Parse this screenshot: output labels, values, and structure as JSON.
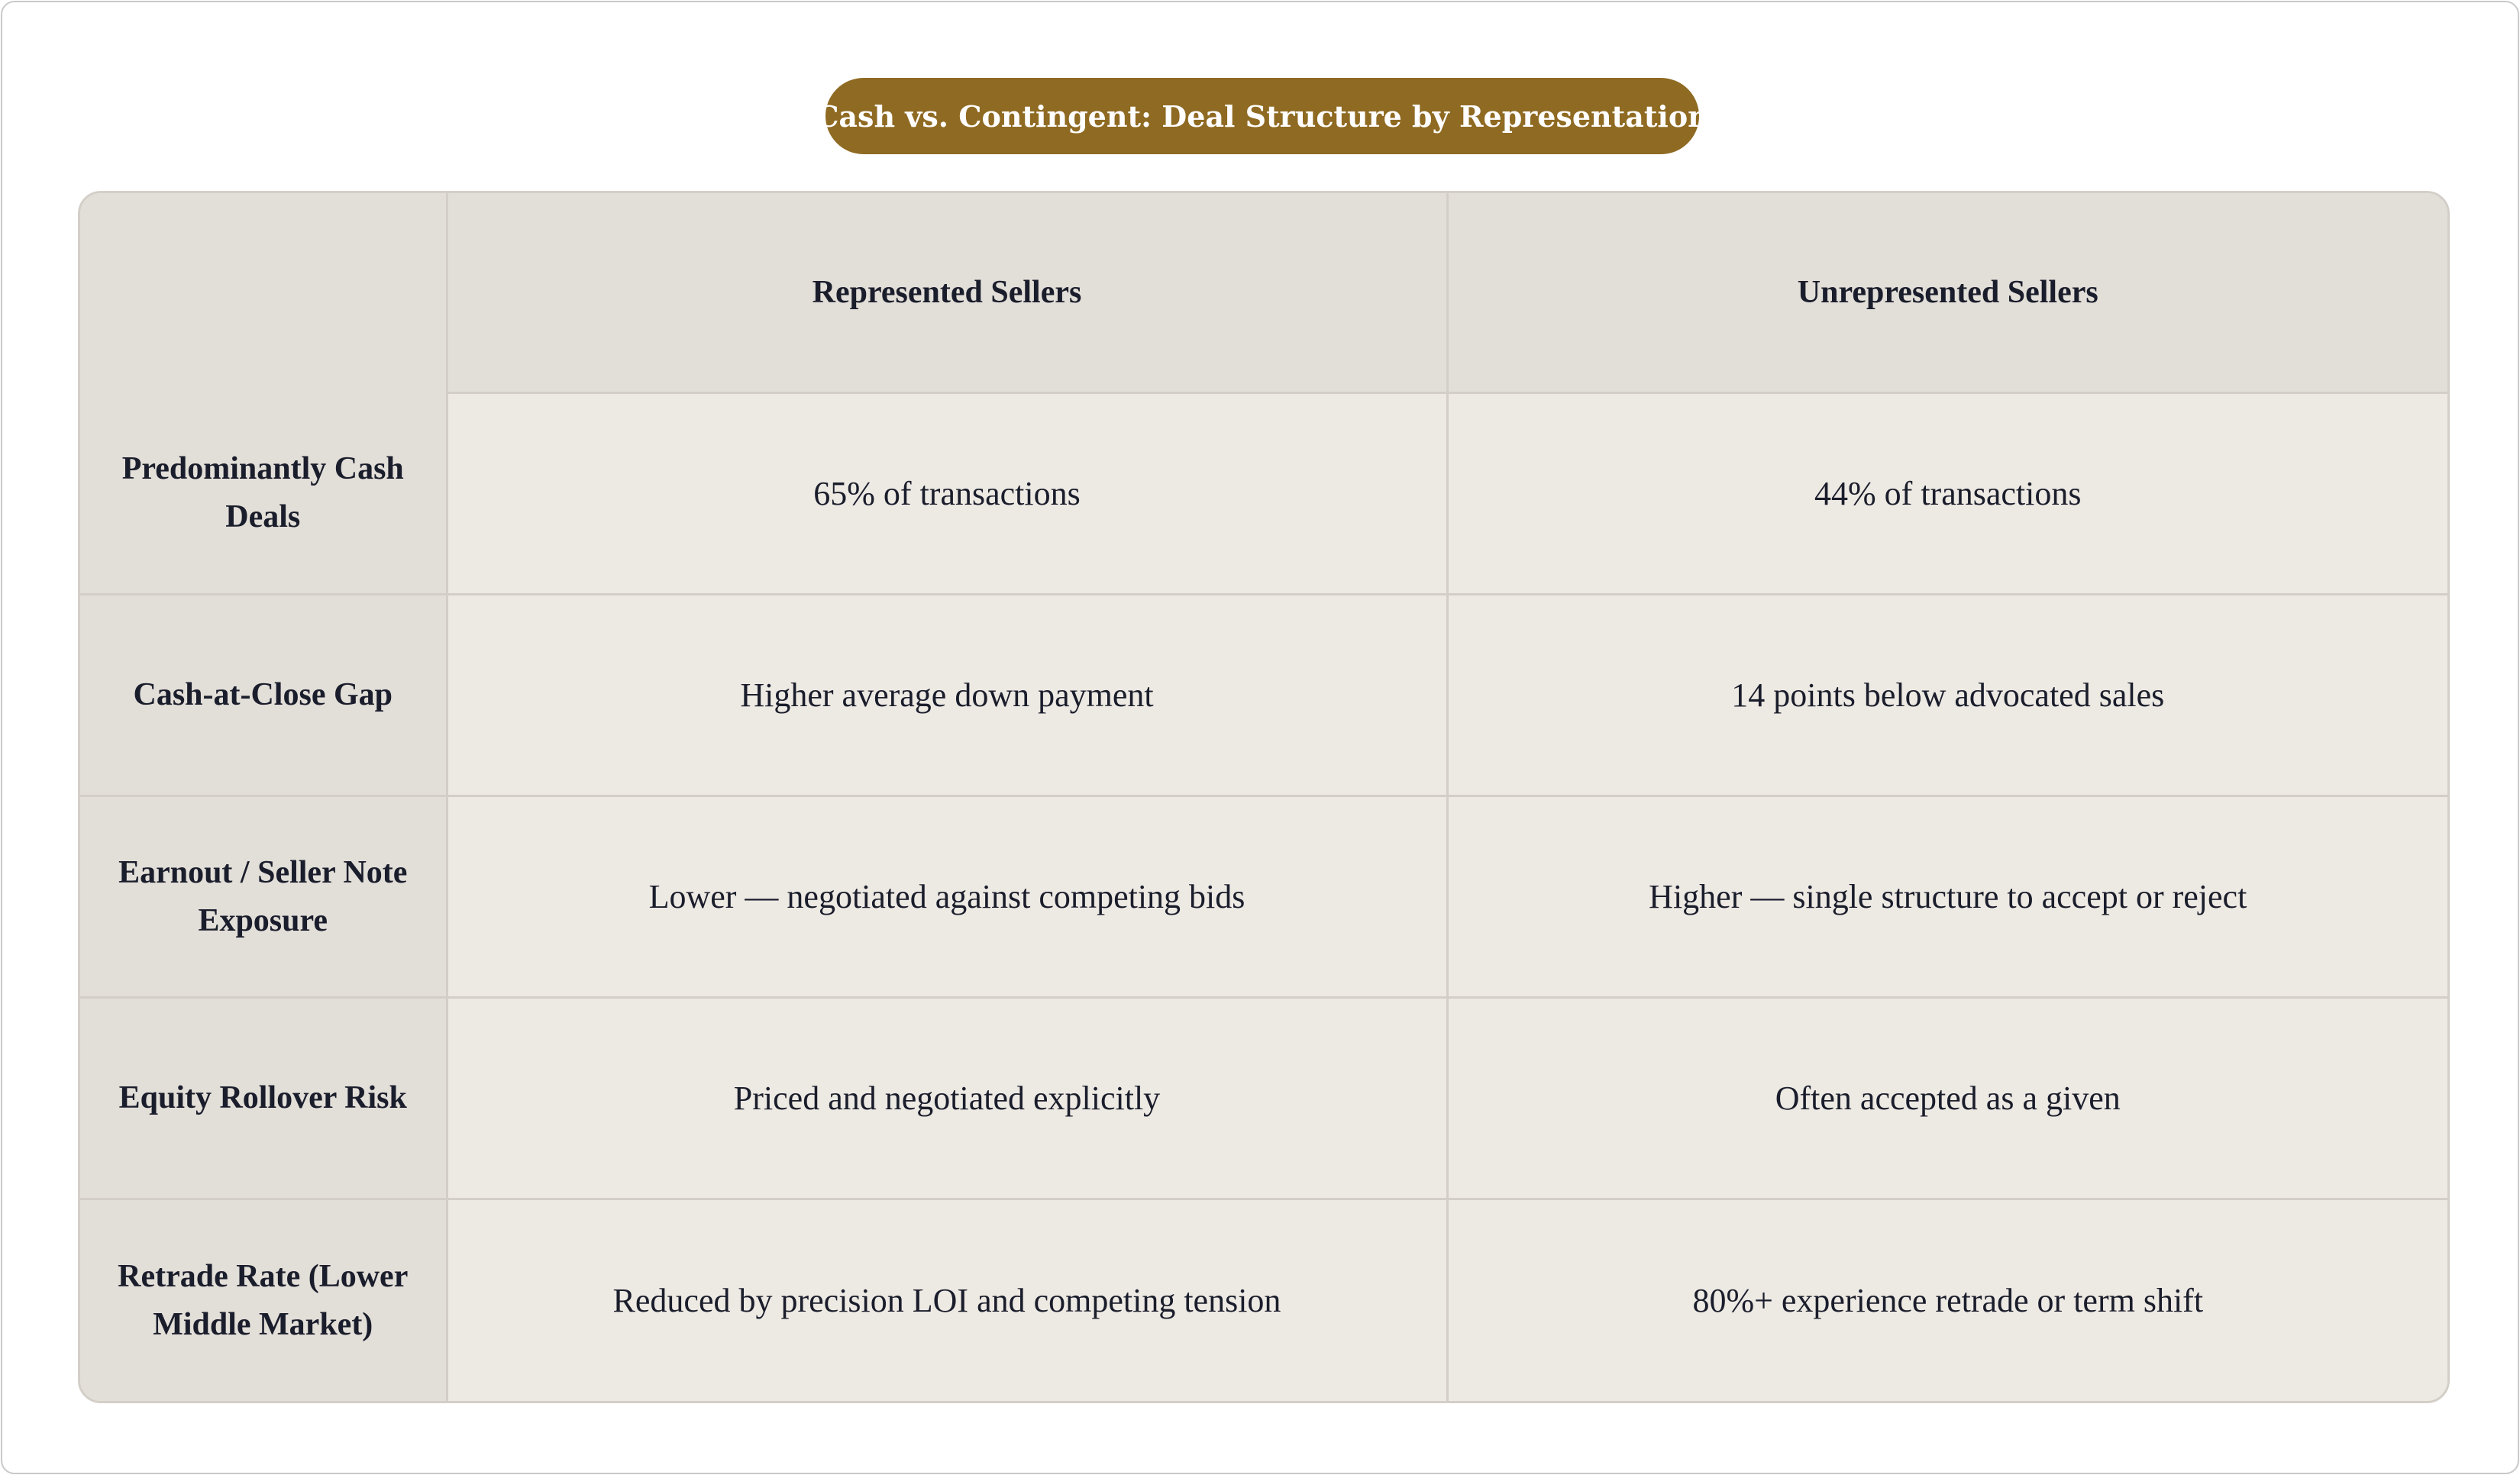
{
  "title": "Cash vs. Contingent: Deal Structure by Representation",
  "table": {
    "headers": [
      "",
      "Represented Sellers",
      "Unrepresented Sellers"
    ],
    "rows": [
      {
        "label": "Predominantly Cash Deals",
        "represented": "65% of transactions",
        "unrepresented": "44% of transactions"
      },
      {
        "label": "Cash-at-Close Gap",
        "represented": "Higher average down payment",
        "unrepresented": "14 points below advocated sales"
      },
      {
        "label": "Earnout / Seller Note Exposure",
        "represented": "Lower — negotiated against competing bids",
        "unrepresented": "Higher — single structure to accept or reject"
      },
      {
        "label": "Equity Rollover Risk",
        "represented": "Priced and negotiated explicitly",
        "unrepresented": "Often accepted as a given"
      },
      {
        "label": "Retrade Rate (Lower Middle Market)",
        "represented": "Reduced by precision LOI and competing tension",
        "unrepresented": "80%+ experience retrade or term shift"
      }
    ]
  }
}
